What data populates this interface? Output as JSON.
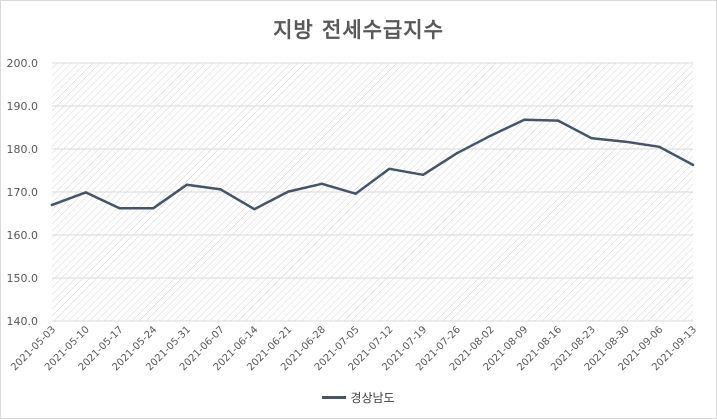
{
  "chart_data": {
    "type": "line",
    "title": "지방 전세수급지수",
    "xlabel": "",
    "ylabel": "",
    "ylim": [
      140,
      200
    ],
    "yticks": [
      "140.0",
      "150.0",
      "160.0",
      "170.0",
      "180.0",
      "190.0",
      "200.0"
    ],
    "grid": true,
    "legend_position": "bottom",
    "categories": [
      "2021-05-03",
      "2021-05-10",
      "2021-05-17",
      "2021-05-24",
      "2021-05-31",
      "2021-06-07",
      "2021-06-14",
      "2021-06-21",
      "2021-06-28",
      "2021-07-05",
      "2021-07-12",
      "2021-07-19",
      "2021-07-26",
      "2021-08-02",
      "2021-08-09",
      "2021-08-16",
      "2021-08-23",
      "2021-08-30",
      "2021-09-06",
      "2021-09-13"
    ],
    "series": [
      {
        "name": "경상남도",
        "color": "#44546a",
        "values": [
          167.0,
          169.9,
          166.2,
          166.2,
          171.7,
          170.6,
          166.0,
          170.1,
          171.9,
          169.6,
          175.4,
          174.0,
          179.0,
          183.1,
          186.8,
          186.6,
          182.5,
          181.7,
          180.5,
          176.3
        ]
      }
    ]
  }
}
